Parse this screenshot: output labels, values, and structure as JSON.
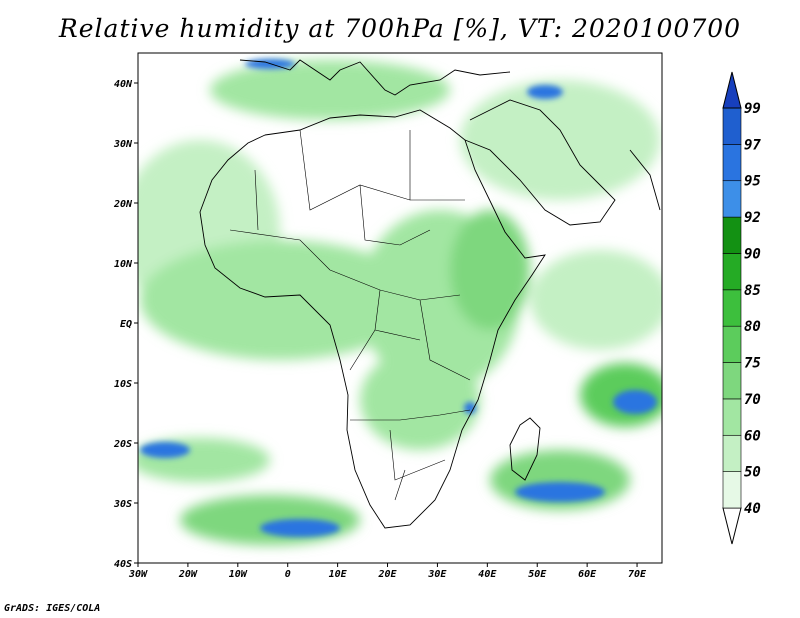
{
  "title": "Relative humidity at 700hPa [%], VT: 2020100700",
  "credit": "GrADS: IGES/COLA",
  "chart_data": {
    "type": "heatmap",
    "variable": "Relative humidity",
    "units": "%",
    "level": "700hPa",
    "valid_time": "2020100700",
    "lon_range": [
      -30,
      75
    ],
    "lat_range": [
      -40,
      45
    ],
    "x_ticks": [
      "30W",
      "20W",
      "10W",
      "0",
      "10E",
      "20E",
      "30E",
      "40E",
      "50E",
      "60E",
      "70E"
    ],
    "y_ticks": [
      "40N",
      "30N",
      "20N",
      "10N",
      "EQ",
      "10S",
      "20S",
      "30S",
      "40S"
    ],
    "colorbar": {
      "levels": [
        40,
        50,
        60,
        70,
        75,
        80,
        85,
        90,
        92,
        95,
        97,
        99
      ],
      "labels": [
        "40",
        "50",
        "60",
        "70",
        "75",
        "80",
        "85",
        "90",
        "92",
        "95",
        "97",
        "99"
      ],
      "colors": [
        "#ffffff",
        "#e6f9e6",
        "#c4f0c4",
        "#a2e6a2",
        "#7ed77e",
        "#5ccc5c",
        "#3dbf3d",
        "#25ab25",
        "#139113",
        "#3d8fe8",
        "#2a74e0",
        "#1f5fcf",
        "#173fbd"
      ]
    }
  }
}
